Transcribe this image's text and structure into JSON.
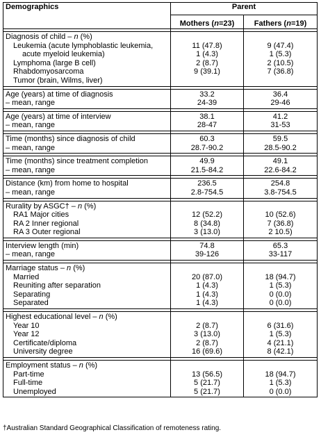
{
  "table": {
    "title": "Demographics",
    "group_header": "Parent",
    "col_mothers": {
      "label": "Mothers (",
      "var": "n",
      "rest": "=23)"
    },
    "col_fathers": {
      "label": "Fathers (",
      "var": "n",
      "rest": "=19)"
    },
    "sections": [
      {
        "heading_pre": "Diagnosis of child – ",
        "heading_var": "n",
        "heading_post": " (%)",
        "rows": [
          {
            "label": "Leukemia (acute lymphoblastic leukemia,",
            "m": "11 (47.8)",
            "f": "9 (47.4)",
            "indent": 1
          },
          {
            "label": "acute myeloid leukemia)",
            "m": "1 (4.3)",
            "f": "1 (5.3)",
            "indent": 2
          },
          {
            "label": "Lymphoma (large B cell)",
            "m": "2 (8.7)",
            "f": "2 (10.5)",
            "indent": 1
          },
          {
            "label": "Rhabdomyosarcoma",
            "m": "9 (39.1)",
            "f": "7 (36.8)",
            "indent": 1
          },
          {
            "label": "Tumor (brain, Wilms, liver)",
            "m": "",
            "f": "",
            "indent": 1
          }
        ]
      },
      {
        "heading_pre": "Age (years) at time of diagnosis",
        "rows": [
          {
            "label": "– mean, range",
            "m": "24-39",
            "f": "29-46",
            "indent": 0
          }
        ],
        "head_m": "33.2",
        "head_f": "36.4"
      },
      {
        "heading_pre": "Age (years) at time of interview",
        "rows": [
          {
            "label": "– mean, range",
            "m": "28-47",
            "f": "31-53",
            "indent": 0
          }
        ],
        "head_m": "38.1",
        "head_f": "41.2"
      },
      {
        "heading_pre": "Time (months) since diagnosis of child",
        "rows": [
          {
            "label": "– mean, range",
            "m": "28.7-90.2",
            "f": "28.5-90.2",
            "indent": 0
          }
        ],
        "head_m": "60.3",
        "head_f": "59.5"
      },
      {
        "heading_pre": "Time (months) since treatment completion",
        "rows": [
          {
            "label": "– mean, range",
            "m": "21.5-84.2",
            "f": "22.6-84.2",
            "indent": 0
          }
        ],
        "head_m": "49.9",
        "head_f": "49.1"
      },
      {
        "heading_pre": "Distance (km) from home to hospital",
        "rows": [
          {
            "label": "– mean, range",
            "m": "2.8-754.5",
            "f": "3.8-754.5",
            "indent": 0
          }
        ],
        "head_m": "236.5",
        "head_f": "254.8"
      },
      {
        "heading_pre": "Rurality by ASGC† – ",
        "heading_var": "n",
        "heading_post": " (%)",
        "rows": [
          {
            "label": "RA1 Major cities",
            "m": "12 (52.2)",
            "f": "10 (52.6)",
            "indent": 1
          },
          {
            "label": "RA 2 Inner regional",
            "m": "8 (34.8)",
            "f": "7 (36.8)",
            "indent": 1
          },
          {
            "label": "RA 3 Outer regional",
            "m": "3 (13.0)",
            "f": "2 10.5)",
            "indent": 1
          }
        ]
      },
      {
        "heading_pre": "Interview length (min)",
        "rows": [
          {
            "label": "– mean, range",
            "m": "39-126",
            "f": "33-117",
            "indent": 0
          }
        ],
        "head_m": "74.8",
        "head_f": "65.3"
      },
      {
        "heading_pre": "Marriage status – ",
        "heading_var": "n",
        "heading_post": " (%)",
        "rows": [
          {
            "label": "Married",
            "m": "20 (87.0)",
            "f": "18 (94.7)",
            "indent": 1
          },
          {
            "label": "Reuniting after separation",
            "m": "1 (4.3)",
            "f": "1 (5.3)",
            "indent": 1
          },
          {
            "label": "Separating",
            "m": "1 (4.3)",
            "f": "0 (0.0)",
            "indent": 1
          },
          {
            "label": "Separated",
            "m": "1 (4.3)",
            "f": "0 (0.0)",
            "indent": 1
          }
        ]
      },
      {
        "heading_pre": "Highest educational level – ",
        "heading_var": "n",
        "heading_post": " (%)",
        "rows": [
          {
            "label": "Year 10",
            "m": "2 (8.7)",
            "f": "6 (31.6)",
            "indent": 1
          },
          {
            "label": "Year 12",
            "m": "3 (13.0)",
            "f": "1 (5.3)",
            "indent": 1
          },
          {
            "label": "Certificate/diploma",
            "m": "2 (8.7)",
            "f": "4 (21.1)",
            "indent": 1
          },
          {
            "label": "University degree",
            "m": "16 (69.6)",
            "f": "8 (42.1)",
            "indent": 1
          }
        ]
      },
      {
        "heading_pre": "Employment status – ",
        "heading_var": "n",
        "heading_post": " (%)",
        "rows": [
          {
            "label": "Part-time",
            "m": "13 (56.5)",
            "f": "18 (94.7)",
            "indent": 1
          },
          {
            "label": "Full-time",
            "m": "5 (21.7)",
            "f": "1 (5.3)",
            "indent": 1
          },
          {
            "label": "Unemployed",
            "m": "5 (21.7)",
            "f": "0 (0.0)",
            "indent": 1
          }
        ]
      }
    ]
  },
  "footnote": "†Australian Standard Geographical Classification of remoteness rating."
}
